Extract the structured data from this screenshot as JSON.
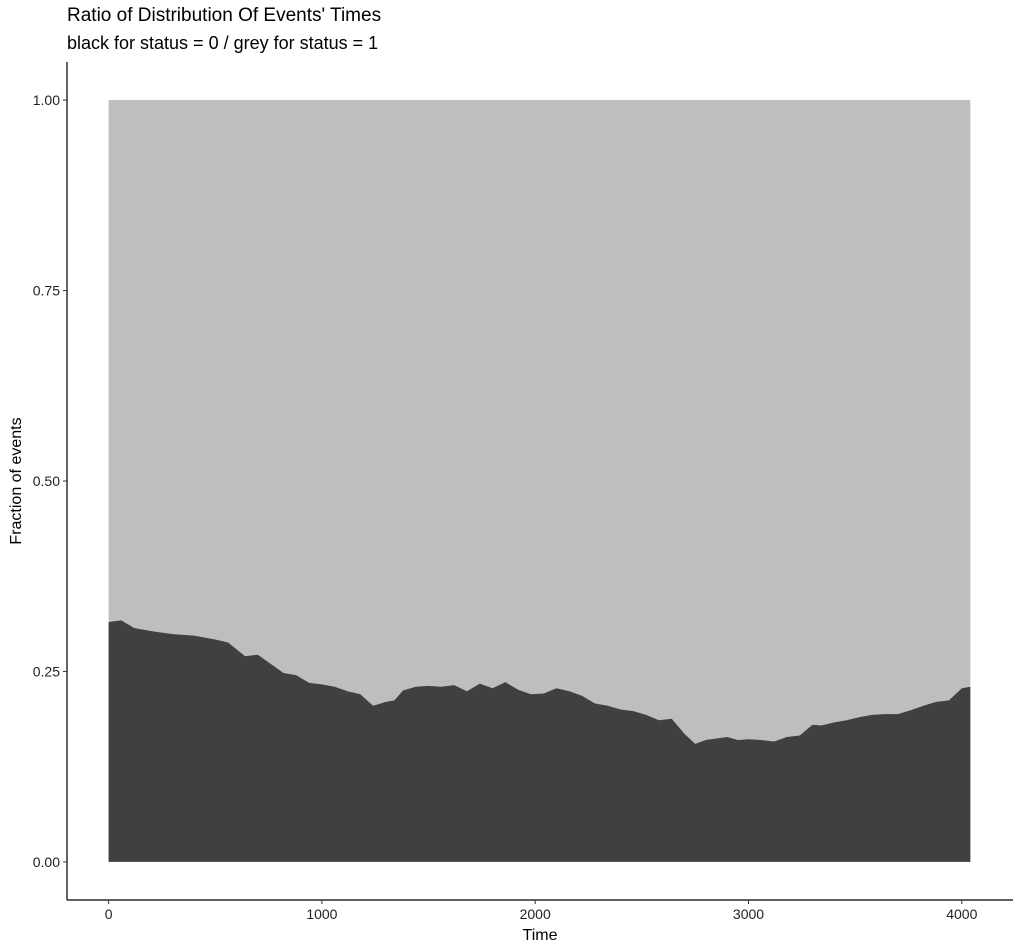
{
  "chart_data": {
    "type": "area",
    "title": "Ratio of Distribution Of Events' Times",
    "subtitle": "black for status = 0 / grey for status = 1",
    "xlabel": "Time",
    "ylabel": "Fraction of events",
    "xlim": [
      -195,
      4240
    ],
    "ylim": [
      -0.05,
      1.05
    ],
    "x_ticks": [
      0,
      1000,
      2000,
      3000,
      4000
    ],
    "x_tick_labels": [
      "0",
      "1000",
      "2000",
      "3000",
      "4000"
    ],
    "y_ticks": [
      0,
      0.25,
      0.5,
      0.75,
      1.0
    ],
    "y_tick_labels": [
      "0.00",
      "0.25",
      "0.50",
      "0.75",
      "1.00"
    ],
    "grid": false,
    "legend": "none",
    "colors": {
      "status_0": "#404040",
      "status_1": "#bebebe"
    },
    "series": [
      {
        "x": [
          0,
          60,
          120,
          200,
          300,
          400,
          500,
          560,
          640,
          700,
          760,
          820,
          880,
          940,
          1000,
          1060,
          1120,
          1180,
          1240,
          1300,
          1340,
          1380,
          1440,
          1500,
          1560,
          1620,
          1680,
          1740,
          1800,
          1860,
          1920,
          1980,
          2040,
          2100,
          2160,
          2220,
          2280,
          2340,
          2400,
          2460,
          2520,
          2580,
          2640,
          2700,
          2750,
          2800,
          2850,
          2900,
          2950,
          3000,
          3060,
          3120,
          3180,
          3240,
          3300,
          3340,
          3400,
          3460,
          3520,
          3580,
          3640,
          3700,
          3760,
          3820,
          3880,
          3940,
          4000,
          4040
        ],
        "values": [
          0.315,
          0.317,
          0.307,
          0.303,
          0.299,
          0.297,
          0.292,
          0.288,
          0.27,
          0.272,
          0.26,
          0.248,
          0.245,
          0.235,
          0.233,
          0.23,
          0.224,
          0.22,
          0.205,
          0.21,
          0.212,
          0.225,
          0.23,
          0.231,
          0.23,
          0.232,
          0.224,
          0.234,
          0.228,
          0.236,
          0.226,
          0.22,
          0.221,
          0.228,
          0.224,
          0.218,
          0.208,
          0.205,
          0.2,
          0.198,
          0.193,
          0.186,
          0.188,
          0.168,
          0.155,
          0.16,
          0.162,
          0.164,
          0.16,
          0.161,
          0.16,
          0.158,
          0.164,
          0.166,
          0.18,
          0.179,
          0.183,
          0.186,
          0.19,
          0.193,
          0.194,
          0.194,
          0.199,
          0.205,
          0.21,
          0.212,
          0.228,
          0.23
        ]
      }
    ]
  }
}
